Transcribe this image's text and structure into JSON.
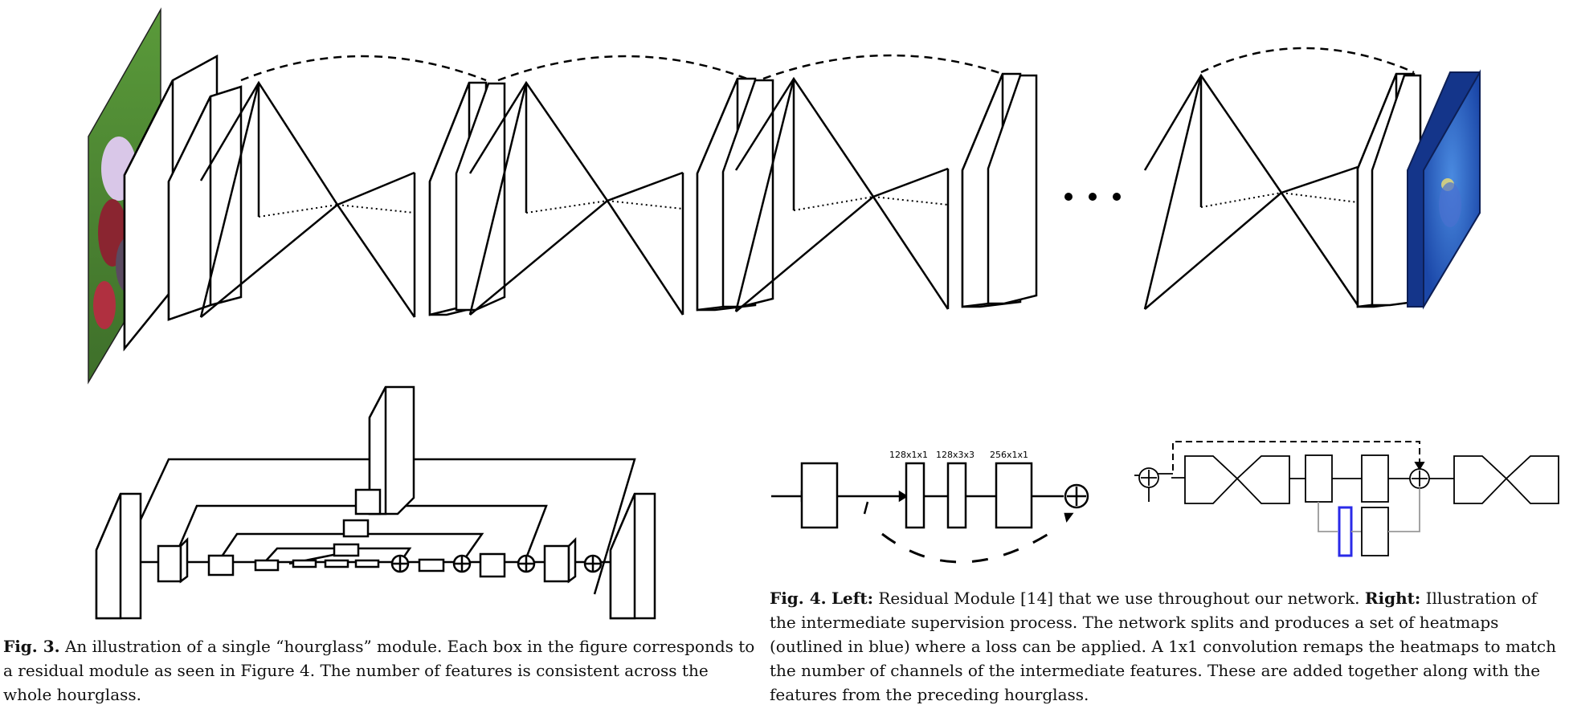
{
  "figure4": {
    "labels": [
      "128x1x1",
      "128x3x3",
      "256x1x1"
    ],
    "colors": {
      "heatmap_outline": "#2a2ae8",
      "heatmap_fill": "#1f4fae",
      "photo_green": "#4f8a34"
    }
  },
  "captions": {
    "fig3": {
      "label": "Fig. 3.",
      "text": "An illustration of a single “hourglass” module. Each box in the figure corresponds to a residual module as seen in Figure 4. The number of features is consistent across the whole hourglass."
    },
    "fig4": {
      "label": "Fig. 4.",
      "left_label": "Left:",
      "left_text": "Residual Module [14] that we use throughout our network.",
      "right_label": "Right:",
      "right_text": "Illustration of the intermediate supervision process. The network splits and produces a set of heatmaps (outlined in blue) where a loss can be applied. A 1x1 convolution remaps the heatmaps to match the number of channels of the intermediate features. These are added together along with the features from the preceding hourglass."
    }
  }
}
